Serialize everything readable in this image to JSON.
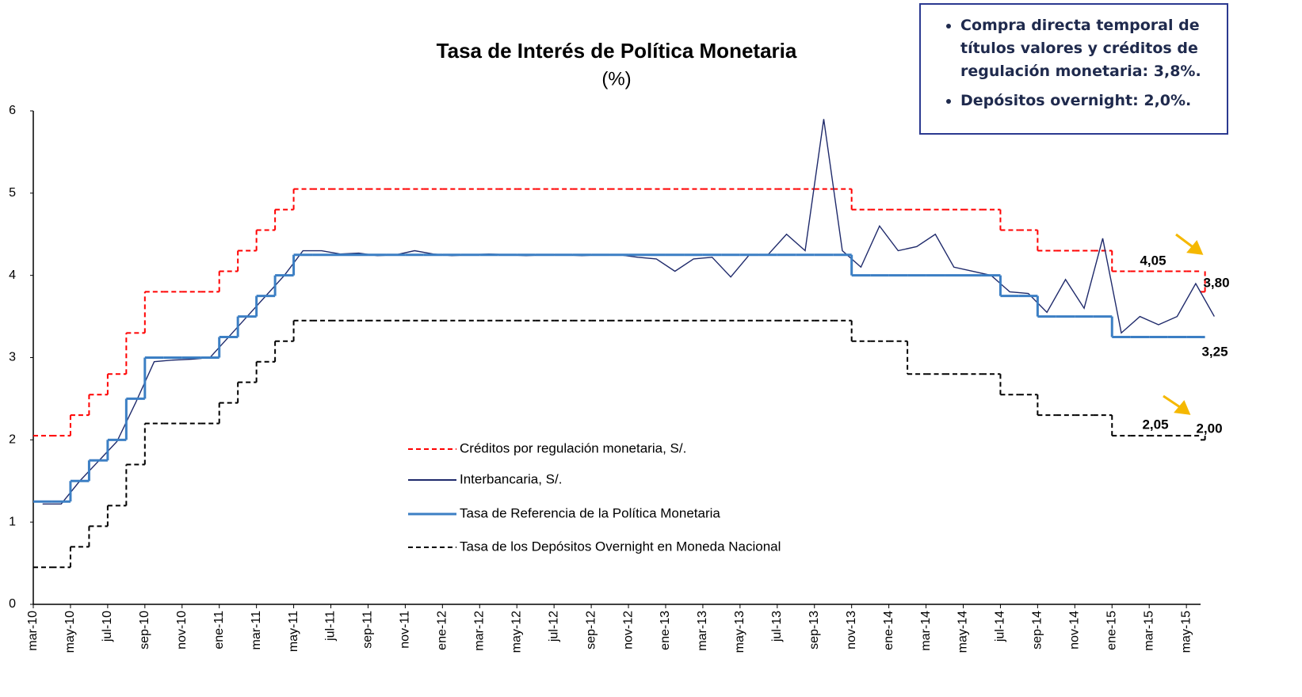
{
  "chart_data": {
    "type": "line",
    "title": "Tasa de Interés de Política Monetaria",
    "subtitle": "(%)",
    "categories": [
      "mar-10",
      null,
      "may-10",
      null,
      "jul-10",
      null,
      "sep-10",
      null,
      "nov-10",
      null,
      "ene-11",
      null,
      "mar-11",
      null,
      "may-11",
      null,
      "jul-11",
      null,
      "sep-11",
      null,
      "nov-11",
      null,
      "ene-12",
      null,
      "mar-12",
      null,
      "may-12",
      null,
      "jul-12",
      null,
      "sep-12",
      null,
      "nov-12",
      null,
      "ene-13",
      null,
      "mar-13",
      null,
      "may-13",
      null,
      "jul-13",
      null,
      "sep-13",
      null,
      "nov-13",
      null,
      "ene-14",
      null,
      "mar-14",
      null,
      "may-14",
      null,
      "jul-14",
      null,
      "sep-14",
      null,
      "nov-14",
      null,
      "ene-15",
      null,
      "mar-15",
      null,
      "may-15",
      null
    ],
    "series": [
      {
        "name": "Créditos por regulación monetaria, S/.",
        "color": "#ff0000",
        "line_style": "dashed",
        "step": true,
        "values": [
          2.05,
          2.05,
          2.3,
          2.55,
          2.8,
          3.3,
          3.8,
          3.8,
          3.8,
          3.8,
          4.05,
          4.3,
          4.55,
          4.8,
          5.05,
          5.05,
          5.05,
          5.05,
          5.05,
          5.05,
          5.05,
          5.05,
          5.05,
          5.05,
          5.05,
          5.05,
          5.05,
          5.05,
          5.05,
          5.05,
          5.05,
          5.05,
          5.05,
          5.05,
          5.05,
          5.05,
          5.05,
          5.05,
          5.05,
          5.05,
          5.05,
          5.05,
          5.05,
          5.05,
          4.8,
          4.8,
          4.8,
          4.8,
          4.8,
          4.8,
          4.8,
          4.8,
          4.55,
          4.55,
          4.3,
          4.3,
          4.3,
          4.3,
          4.05,
          4.05,
          4.05,
          4.05,
          4.05,
          3.8
        ]
      },
      {
        "name": "Interbancaria, S/.",
        "color": "#1f2a6b",
        "line_style": "solid",
        "step": false,
        "values": [
          1.22,
          1.22,
          1.5,
          1.74,
          1.98,
          2.45,
          2.95,
          2.97,
          2.98,
          3.0,
          3.25,
          3.5,
          3.75,
          4.0,
          4.3,
          4.3,
          4.26,
          4.27,
          4.24,
          4.25,
          4.3,
          4.26,
          4.24,
          4.25,
          4.26,
          4.25,
          4.24,
          4.25,
          4.25,
          4.24,
          4.25,
          4.25,
          4.22,
          4.2,
          4.05,
          4.2,
          4.22,
          3.98,
          4.25,
          4.25,
          4.5,
          4.3,
          5.9,
          4.3,
          4.1,
          4.6,
          4.3,
          4.35,
          4.5,
          4.1,
          4.05,
          4.0,
          3.8,
          3.78,
          3.55,
          3.95,
          3.6,
          4.45,
          3.3,
          3.5,
          3.4,
          3.5,
          3.9,
          3.5
        ]
      },
      {
        "name": "Tasa de Referencia de la Política Monetaria",
        "color": "#3c7fc4",
        "line_style": "solid",
        "step": true,
        "values": [
          1.25,
          1.25,
          1.5,
          1.75,
          2.0,
          2.5,
          3.0,
          3.0,
          3.0,
          3.0,
          3.25,
          3.5,
          3.75,
          4.0,
          4.25,
          4.25,
          4.25,
          4.25,
          4.25,
          4.25,
          4.25,
          4.25,
          4.25,
          4.25,
          4.25,
          4.25,
          4.25,
          4.25,
          4.25,
          4.25,
          4.25,
          4.25,
          4.25,
          4.25,
          4.25,
          4.25,
          4.25,
          4.25,
          4.25,
          4.25,
          4.25,
          4.25,
          4.25,
          4.25,
          4.0,
          4.0,
          4.0,
          4.0,
          4.0,
          4.0,
          4.0,
          4.0,
          3.75,
          3.75,
          3.5,
          3.5,
          3.5,
          3.5,
          3.25,
          3.25,
          3.25,
          3.25,
          3.25,
          3.25
        ]
      },
      {
        "name": "Tasa de los Depósitos Overnight en Moneda Nacional",
        "color": "#000000",
        "line_style": "dashed",
        "step": true,
        "values": [
          0.45,
          0.45,
          0.7,
          0.95,
          1.2,
          1.7,
          2.2,
          2.2,
          2.2,
          2.2,
          2.45,
          2.7,
          2.95,
          3.2,
          3.45,
          3.45,
          3.45,
          3.45,
          3.45,
          3.45,
          3.45,
          3.45,
          3.45,
          3.45,
          3.45,
          3.45,
          3.45,
          3.45,
          3.45,
          3.45,
          3.45,
          3.45,
          3.45,
          3.45,
          3.45,
          3.45,
          3.45,
          3.45,
          3.45,
          3.45,
          3.45,
          3.45,
          3.45,
          3.45,
          3.2,
          3.2,
          3.2,
          2.8,
          2.8,
          2.8,
          2.8,
          2.8,
          2.55,
          2.55,
          2.3,
          2.3,
          2.3,
          2.3,
          2.05,
          2.05,
          2.05,
          2.05,
          2.05,
          2.0
        ]
      }
    ],
    "ylim": [
      0,
      6
    ],
    "yticks": [
      0,
      1,
      2,
      3,
      4,
      5,
      6
    ],
    "grid": false,
    "annotations": [
      "4,05",
      "3,80",
      "3,25",
      "2,05",
      "2,00"
    ],
    "note": [
      "Compra directa temporal de títulos valores y créditos de regulación monetaria: 3,8%.",
      "Depósitos overnight: 2,0%."
    ]
  }
}
